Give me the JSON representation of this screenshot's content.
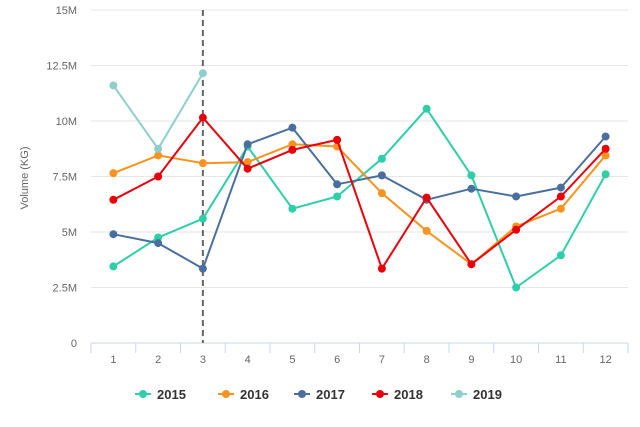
{
  "chart_data": {
    "type": "line",
    "ylabel": "Volume (KG)",
    "xlabel": "",
    "x": [
      1,
      2,
      3,
      4,
      5,
      6,
      7,
      8,
      9,
      10,
      11,
      12
    ],
    "x_tick_labels": [
      "1",
      "2",
      "3",
      "4",
      "5",
      "6",
      "7",
      "8",
      "9",
      "10",
      "11",
      "12"
    ],
    "ylim": [
      0,
      15000000
    ],
    "y_ticks": [
      0,
      2500000,
      5000000,
      7500000,
      10000000,
      12500000,
      15000000
    ],
    "y_tick_labels": [
      "0",
      "2.5M",
      "5M",
      "7.5M",
      "10M",
      "12.5M",
      "15M"
    ],
    "grid": "horizontal",
    "legend_position": "bottom",
    "reference_line": {
      "x": 3,
      "style": "dashed",
      "color": "#666666"
    },
    "series": [
      {
        "name": "2015",
        "color": "#2ecfa8",
        "values": [
          3450000,
          4750000,
          5600000,
          8850000,
          6050000,
          6600000,
          8300000,
          10550000,
          7550000,
          2500000,
          3950000,
          7600000
        ]
      },
      {
        "name": "2016",
        "color": "#f7931e",
        "values": [
          7650000,
          8450000,
          8100000,
          8150000,
          8950000,
          8850000,
          6750000,
          5050000,
          3550000,
          5250000,
          6050000,
          8450000
        ]
      },
      {
        "name": "2017",
        "color": "#4a6f9e",
        "values": [
          4900000,
          4500000,
          3350000,
          8950000,
          9700000,
          7150000,
          7550000,
          6450000,
          6950000,
          6600000,
          7000000,
          9300000
        ]
      },
      {
        "name": "2018",
        "color": "#e8000b",
        "values": [
          6450000,
          7500000,
          10150000,
          7850000,
          8700000,
          9150000,
          3350000,
          6550000,
          3550000,
          5100000,
          6600000,
          8750000
        ]
      },
      {
        "name": "2019",
        "color": "#8ecfcc",
        "values": [
          11600000,
          8750000,
          12150000,
          null,
          null,
          null,
          null,
          null,
          null,
          null,
          null,
          null
        ]
      }
    ]
  }
}
